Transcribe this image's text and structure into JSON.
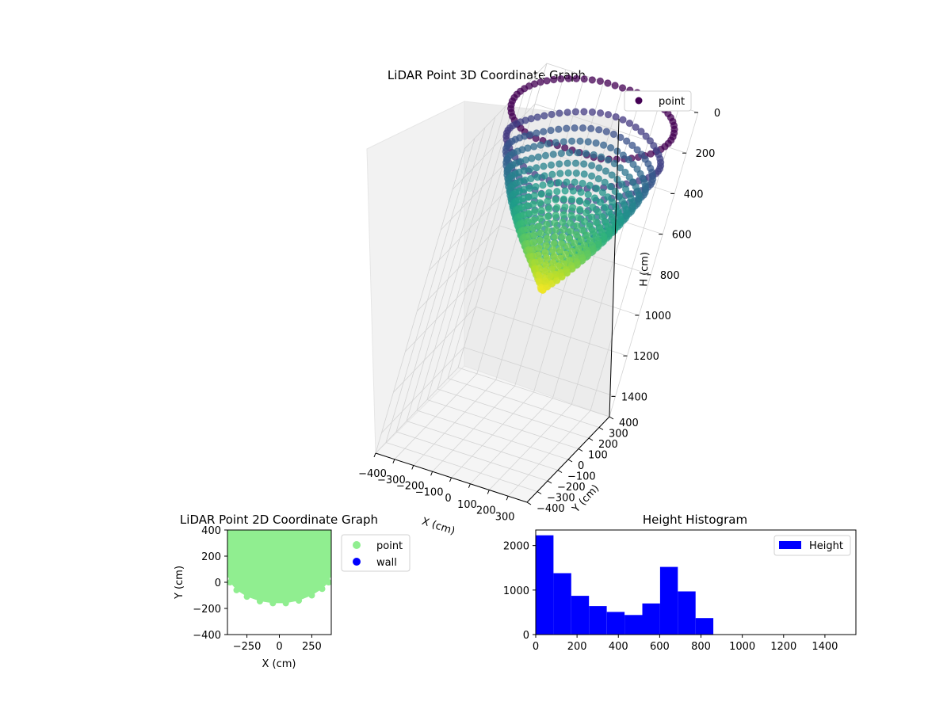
{
  "chart_data": [
    {
      "type": "scatter",
      "projection": "3d",
      "title": "LiDAR Point 3D Coordinate Graph",
      "xlabel": "X (cm)",
      "ylabel": "Y (cm)",
      "zlabel": "H (cm)",
      "xlim": [
        -400,
        400
      ],
      "ylim": [
        -400,
        400
      ],
      "zlim": [
        0,
        1500
      ],
      "z_inverted": true,
      "x_ticks": [
        "−400",
        "−300",
        "−200",
        "−100",
        "0",
        "100",
        "200",
        "300"
      ],
      "y_ticks": [
        "−400",
        "−300",
        "−200",
        "−100",
        "0",
        "100",
        "200",
        "300",
        "400"
      ],
      "z_ticks": [
        "0",
        "200",
        "400",
        "600",
        "800",
        "1000",
        "1200",
        "1400"
      ],
      "colormap": "viridis",
      "grid": true,
      "legend": {
        "placement": "upper-right-outside",
        "entries": [
          {
            "label": "point",
            "color": "#440154"
          }
        ]
      },
      "series": [
        {
          "name": "point",
          "shape": "bowl",
          "rim_height": 0,
          "max_height": 860,
          "rim_radius": 400,
          "y_extent": [
            -160,
            400
          ]
        }
      ]
    },
    {
      "type": "scatter",
      "title": "LiDAR Point 2D Coordinate Graph",
      "xlabel": "X (cm)",
      "ylabel": "Y (cm)",
      "xlim": [
        -400,
        400
      ],
      "ylim": [
        -400,
        400
      ],
      "x_ticks": [
        -250,
        0,
        250
      ],
      "y_ticks": [
        -400,
        -200,
        0,
        200,
        400
      ],
      "grid": false,
      "legend": {
        "placement": "upper-right-outside",
        "entries": [
          {
            "label": "point",
            "color": "#90ee90"
          },
          {
            "label": "wall",
            "color": "#0000ff"
          }
        ]
      },
      "series": [
        {
          "name": "point",
          "color": "#90ee90",
          "region_outline": [
            [
              -400,
              400
            ],
            [
              -400,
              60
            ],
            [
              -380,
              0
            ],
            [
              -330,
              -60
            ],
            [
              -250,
              -110
            ],
            [
              -150,
              -145
            ],
            [
              -50,
              -160
            ],
            [
              50,
              -160
            ],
            [
              150,
              -140
            ],
            [
              250,
              -100
            ],
            [
              330,
              -50
            ],
            [
              380,
              0
            ],
            [
              400,
              60
            ],
            [
              400,
              400
            ]
          ]
        },
        {
          "name": "wall",
          "color": "#0000ff",
          "points": []
        }
      ]
    },
    {
      "type": "bar",
      "title": "Height Histogram",
      "xlabel": "",
      "ylabel": "",
      "xlim": [
        0,
        1550
      ],
      "ylim": [
        0,
        2350
      ],
      "x_ticks": [
        0,
        200,
        400,
        600,
        800,
        1000,
        1200,
        1400
      ],
      "y_ticks": [
        0,
        1000,
        2000
      ],
      "legend": {
        "placement": "upper-right",
        "entries": [
          {
            "label": "Height",
            "color": "#0000ff"
          }
        ]
      },
      "series": [
        {
          "name": "Height",
          "color": "#0000ff",
          "bin_edges": [
            0,
            86,
            172,
            258,
            344,
            430,
            516,
            602,
            688,
            774,
            860
          ],
          "values": [
            2230,
            1380,
            870,
            640,
            510,
            440,
            700,
            1520,
            970,
            370
          ]
        }
      ]
    }
  ]
}
